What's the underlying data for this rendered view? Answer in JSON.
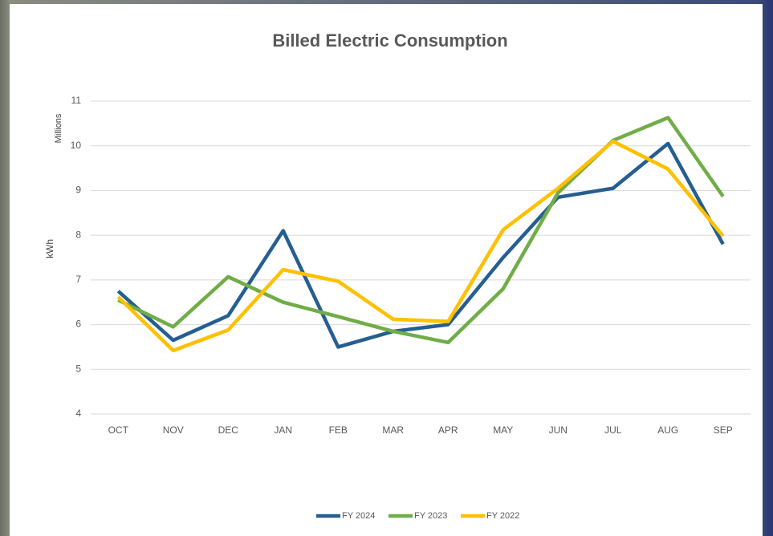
{
  "chart_data": {
    "type": "line",
    "title": "Billed Electric Consumption",
    "y_label": "kWh",
    "y_units_label": "Millions",
    "categories": [
      "OCT",
      "NOV",
      "DEC",
      "JAN",
      "FEB",
      "MAR",
      "APR",
      "MAY",
      "JUN",
      "JUL",
      "AUG",
      "SEP"
    ],
    "series": [
      {
        "name": "FY 2024",
        "color": "#255e91",
        "values": [
          6.75,
          5.65,
          6.2,
          8.1,
          5.5,
          5.85,
          6.0,
          7.5,
          8.85,
          9.05,
          10.05,
          7.8
        ]
      },
      {
        "name": "FY 2023",
        "color": "#70ad47",
        "values": [
          6.55,
          5.95,
          7.07,
          6.5,
          6.18,
          5.85,
          5.6,
          6.8,
          8.95,
          10.12,
          10.63,
          8.87
        ]
      },
      {
        "name": "FY 2022",
        "color": "#ffc000",
        "values": [
          6.62,
          5.42,
          5.88,
          7.23,
          6.97,
          6.12,
          6.07,
          8.12,
          9.05,
          10.1,
          9.48,
          7.98
        ]
      }
    ],
    "ylim": [
      4,
      11
    ],
    "yticks": [
      4,
      5,
      6,
      7,
      8,
      9,
      10,
      11
    ],
    "grid": true,
    "legend": "bottom"
  }
}
